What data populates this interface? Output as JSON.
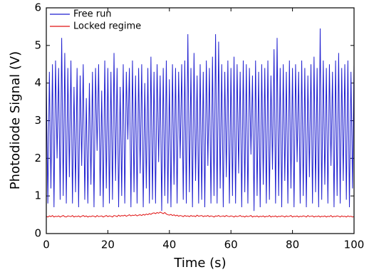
{
  "chart_data": {
    "type": "line",
    "xlabel": "Time (s)",
    "ylabel": "Photodiode Signal (V)",
    "x": [
      0,
      0.5,
      1,
      1.5,
      2,
      2.5,
      3,
      3.5,
      4,
      4.5,
      5,
      5.5,
      6,
      6.5,
      7,
      7.5,
      8,
      8.5,
      9,
      9.5,
      10,
      10.5,
      11,
      11.5,
      12,
      12.5,
      13,
      13.5,
      14,
      14.5,
      15,
      15.5,
      16,
      16.5,
      17,
      17.5,
      18,
      18.5,
      19,
      19.5,
      20,
      20.5,
      21,
      21.5,
      22,
      22.5,
      23,
      23.5,
      24,
      24.5,
      25,
      25.5,
      26,
      26.5,
      27,
      27.5,
      28,
      28.5,
      29,
      29.5,
      30,
      30.5,
      31,
      31.5,
      32,
      32.5,
      33,
      33.5,
      34,
      34.5,
      35,
      35.5,
      36,
      36.5,
      37,
      37.5,
      38,
      38.5,
      39,
      39.5,
      40,
      40.5,
      41,
      41.5,
      42,
      42.5,
      43,
      43.5,
      44,
      44.5,
      45,
      45.5,
      46,
      46.5,
      47,
      47.5,
      48,
      48.5,
      49,
      49.5,
      50,
      50.5,
      51,
      51.5,
      52,
      52.5,
      53,
      53.5,
      54,
      54.5,
      55,
      55.5,
      56,
      56.5,
      57,
      57.5,
      58,
      58.5,
      59,
      59.5,
      60,
      60.5,
      61,
      61.5,
      62,
      62.5,
      63,
      63.5,
      64,
      64.5,
      65,
      65.5,
      66,
      66.5,
      67,
      67.5,
      68,
      68.5,
      69,
      69.5,
      70,
      70.5,
      71,
      71.5,
      72,
      72.5,
      73,
      73.5,
      74,
      74.5,
      75,
      75.5,
      76,
      76.5,
      77,
      77.5,
      78,
      78.5,
      79,
      79.5,
      80,
      80.5,
      81,
      81.5,
      82,
      82.5,
      83,
      83.5,
      84,
      84.5,
      85,
      85.5,
      86,
      86.5,
      87,
      87.5,
      88,
      88.5,
      89,
      89.5,
      90,
      90.5,
      91,
      91.5,
      92,
      92.5,
      93,
      93.5,
      94,
      94.5,
      95,
      95.5,
      96,
      96.5,
      97,
      97.5,
      98,
      98.5,
      99,
      99.5,
      100
    ],
    "series": [
      {
        "name": "Free run",
        "color": "#1f1fd0",
        "values": [
          4.1,
          0.8,
          4.3,
          1.2,
          4.5,
          0.7,
          4.6,
          2.0,
          4.4,
          0.9,
          5.2,
          1.0,
          4.8,
          0.8,
          4.4,
          1.5,
          4.6,
          0.8,
          3.9,
          1.1,
          4.4,
          0.7,
          4.2,
          1.8,
          4.5,
          0.9,
          3.6,
          0.8,
          4.0,
          1.3,
          4.3,
          0.7,
          4.4,
          2.2,
          4.5,
          1.0,
          3.8,
          0.7,
          4.6,
          1.2,
          4.4,
          0.8,
          4.3,
          0.9,
          4.8,
          1.4,
          4.4,
          0.7,
          3.9,
          1.0,
          4.5,
          0.8,
          4.3,
          2.5,
          4.4,
          0.7,
          4.6,
          1.1,
          4.2,
          0.8,
          4.4,
          1.6,
          4.5,
          0.7,
          4.0,
          1.2,
          4.4,
          0.8,
          4.7,
          0.9,
          4.3,
          0.8,
          4.5,
          1.9,
          4.2,
          0.6,
          4.4,
          1.0,
          4.6,
          0.8,
          4.1,
          0.7,
          4.5,
          1.3,
          4.4,
          0.8,
          4.3,
          2.0,
          4.5,
          0.9,
          4.6,
          0.8,
          5.3,
          1.1,
          4.4,
          0.7,
          4.8,
          1.4,
          4.2,
          0.8,
          4.5,
          0.9,
          4.3,
          0.7,
          4.6,
          1.8,
          4.4,
          0.8,
          4.7,
          1.0,
          5.3,
          0.8,
          5.1,
          1.2,
          4.5,
          0.7,
          4.3,
          1.5,
          4.6,
          0.8,
          4.4,
          1.0,
          4.7,
          0.8,
          4.5,
          1.6,
          4.3,
          0.7,
          4.6,
          1.1,
          4.5,
          0.8,
          4.4,
          2.1,
          4.2,
          0.6,
          4.6,
          1.0,
          4.3,
          0.7,
          4.5,
          1.3,
          4.4,
          0.8,
          4.6,
          0.9,
          4.2,
          1.7,
          4.9,
          0.8,
          5.2,
          1.0,
          4.4,
          0.7,
          4.5,
          1.4,
          4.3,
          0.8,
          4.6,
          1.2,
          4.4,
          0.7,
          4.5,
          1.9,
          4.3,
          0.8,
          4.6,
          1.0,
          4.4,
          0.7,
          4.2,
          1.5,
          4.5,
          0.8,
          4.7,
          1.1,
          4.4,
          0.7,
          5.45,
          0.9,
          4.6,
          1.3,
          4.4,
          0.8,
          4.5,
          1.8,
          4.3,
          0.7,
          4.6,
          1.0,
          4.8,
          0.8,
          4.4,
          1.4,
          4.5,
          0.9,
          4.6,
          0.7,
          4.3,
          1.2,
          4.5
        ]
      },
      {
        "name": "Locked regime",
        "color": "#e01010",
        "values": [
          0.46,
          0.44,
          0.47,
          0.45,
          0.48,
          0.44,
          0.46,
          0.45,
          0.47,
          0.44,
          0.46,
          0.48,
          0.45,
          0.44,
          0.47,
          0.46,
          0.45,
          0.48,
          0.44,
          0.46,
          0.45,
          0.47,
          0.44,
          0.46,
          0.48,
          0.45,
          0.47,
          0.44,
          0.46,
          0.45,
          0.47,
          0.46,
          0.44,
          0.48,
          0.45,
          0.46,
          0.47,
          0.44,
          0.46,
          0.48,
          0.45,
          0.47,
          0.46,
          0.44,
          0.48,
          0.47,
          0.45,
          0.49,
          0.46,
          0.48,
          0.47,
          0.49,
          0.46,
          0.48,
          0.5,
          0.47,
          0.49,
          0.48,
          0.5,
          0.47,
          0.49,
          0.5,
          0.48,
          0.51,
          0.49,
          0.52,
          0.5,
          0.53,
          0.51,
          0.54,
          0.55,
          0.53,
          0.56,
          0.54,
          0.57,
          0.55,
          0.53,
          0.56,
          0.52,
          0.5,
          0.49,
          0.51,
          0.48,
          0.5,
          0.47,
          0.49,
          0.46,
          0.48,
          0.47,
          0.45,
          0.48,
          0.46,
          0.47,
          0.45,
          0.48,
          0.46,
          0.47,
          0.45,
          0.49,
          0.46,
          0.47,
          0.48,
          0.45,
          0.47,
          0.46,
          0.48,
          0.45,
          0.47,
          0.46,
          0.44,
          0.47,
          0.46,
          0.48,
          0.45,
          0.46,
          0.47,
          0.45,
          0.48,
          0.46,
          0.45,
          0.47,
          0.46,
          0.44,
          0.47,
          0.45,
          0.46,
          0.48,
          0.45,
          0.46,
          0.44,
          0.47,
          0.45,
          0.46,
          0.48,
          0.44,
          0.46,
          0.45,
          0.47,
          0.44,
          0.46,
          0.45,
          0.47,
          0.44,
          0.46,
          0.45,
          0.48,
          0.44,
          0.46,
          0.45,
          0.47,
          0.44,
          0.46,
          0.45,
          0.47,
          0.46,
          0.44,
          0.47,
          0.45,
          0.46,
          0.48,
          0.44,
          0.46,
          0.45,
          0.47,
          0.44,
          0.46,
          0.45,
          0.47,
          0.46,
          0.44,
          0.48,
          0.45,
          0.46,
          0.47,
          0.44,
          0.46,
          0.45,
          0.47,
          0.44,
          0.46,
          0.45,
          0.47,
          0.44,
          0.46,
          0.45,
          0.48,
          0.44,
          0.46,
          0.45,
          0.47,
          0.46,
          0.44,
          0.47,
          0.45,
          0.46,
          0.44,
          0.47,
          0.45,
          0.46,
          0.44,
          0.45
        ]
      }
    ],
    "xlim": [
      0,
      100
    ],
    "ylim": [
      0,
      6
    ],
    "xticks": [
      0,
      20,
      40,
      60,
      80,
      100
    ],
    "yticks": [
      0,
      1,
      2,
      3,
      4,
      5,
      6
    ],
    "legend": "upper left"
  }
}
